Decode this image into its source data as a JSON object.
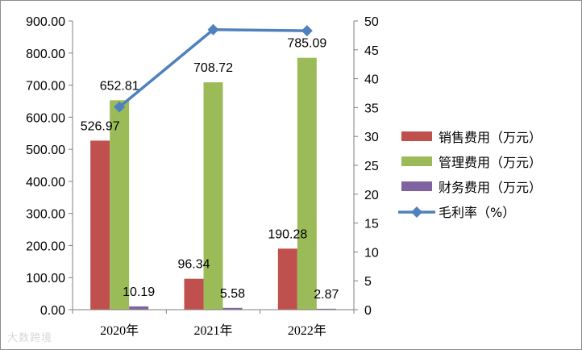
{
  "chart_data": {
    "type": "bar",
    "categories": [
      "2020年",
      "2021年",
      "2022年"
    ],
    "series": [
      {
        "name": "销售费用（万元）",
        "type": "bar",
        "axis": "left",
        "color": "#c0504d",
        "values": [
          526.97,
          96.34,
          190.28
        ],
        "labels": [
          "526.97",
          "96.34",
          "190.28"
        ]
      },
      {
        "name": "管理费用（万元）",
        "type": "bar",
        "axis": "left",
        "color": "#9bbb59",
        "values": [
          652.81,
          708.72,
          785.09
        ],
        "labels": [
          "652.81",
          "708.72",
          "785.09"
        ]
      },
      {
        "name": "财务费用（万元）",
        "type": "bar",
        "axis": "left",
        "color": "#8064a2",
        "values": [
          10.19,
          5.58,
          2.87
        ],
        "labels": [
          "10.19",
          "5.58",
          "2.87"
        ]
      },
      {
        "name": "毛利率（%）",
        "type": "line",
        "axis": "right",
        "color": "#4f81bd",
        "values": [
          35.1,
          48.5,
          48.3
        ]
      }
    ],
    "left_axis": {
      "min": 0,
      "max": 900,
      "step": 100,
      "ticks": [
        "0.00",
        "100.00",
        "200.00",
        "300.00",
        "400.00",
        "500.00",
        "600.00",
        "700.00",
        "800.00",
        "900.00"
      ]
    },
    "right_axis": {
      "min": 0,
      "max": 50,
      "step": 5,
      "ticks": [
        "0",
        "5",
        "10",
        "15",
        "20",
        "25",
        "30",
        "35",
        "40",
        "45",
        "50"
      ]
    },
    "legend_position": "right",
    "grid": false
  },
  "watermark": "大数跨境"
}
